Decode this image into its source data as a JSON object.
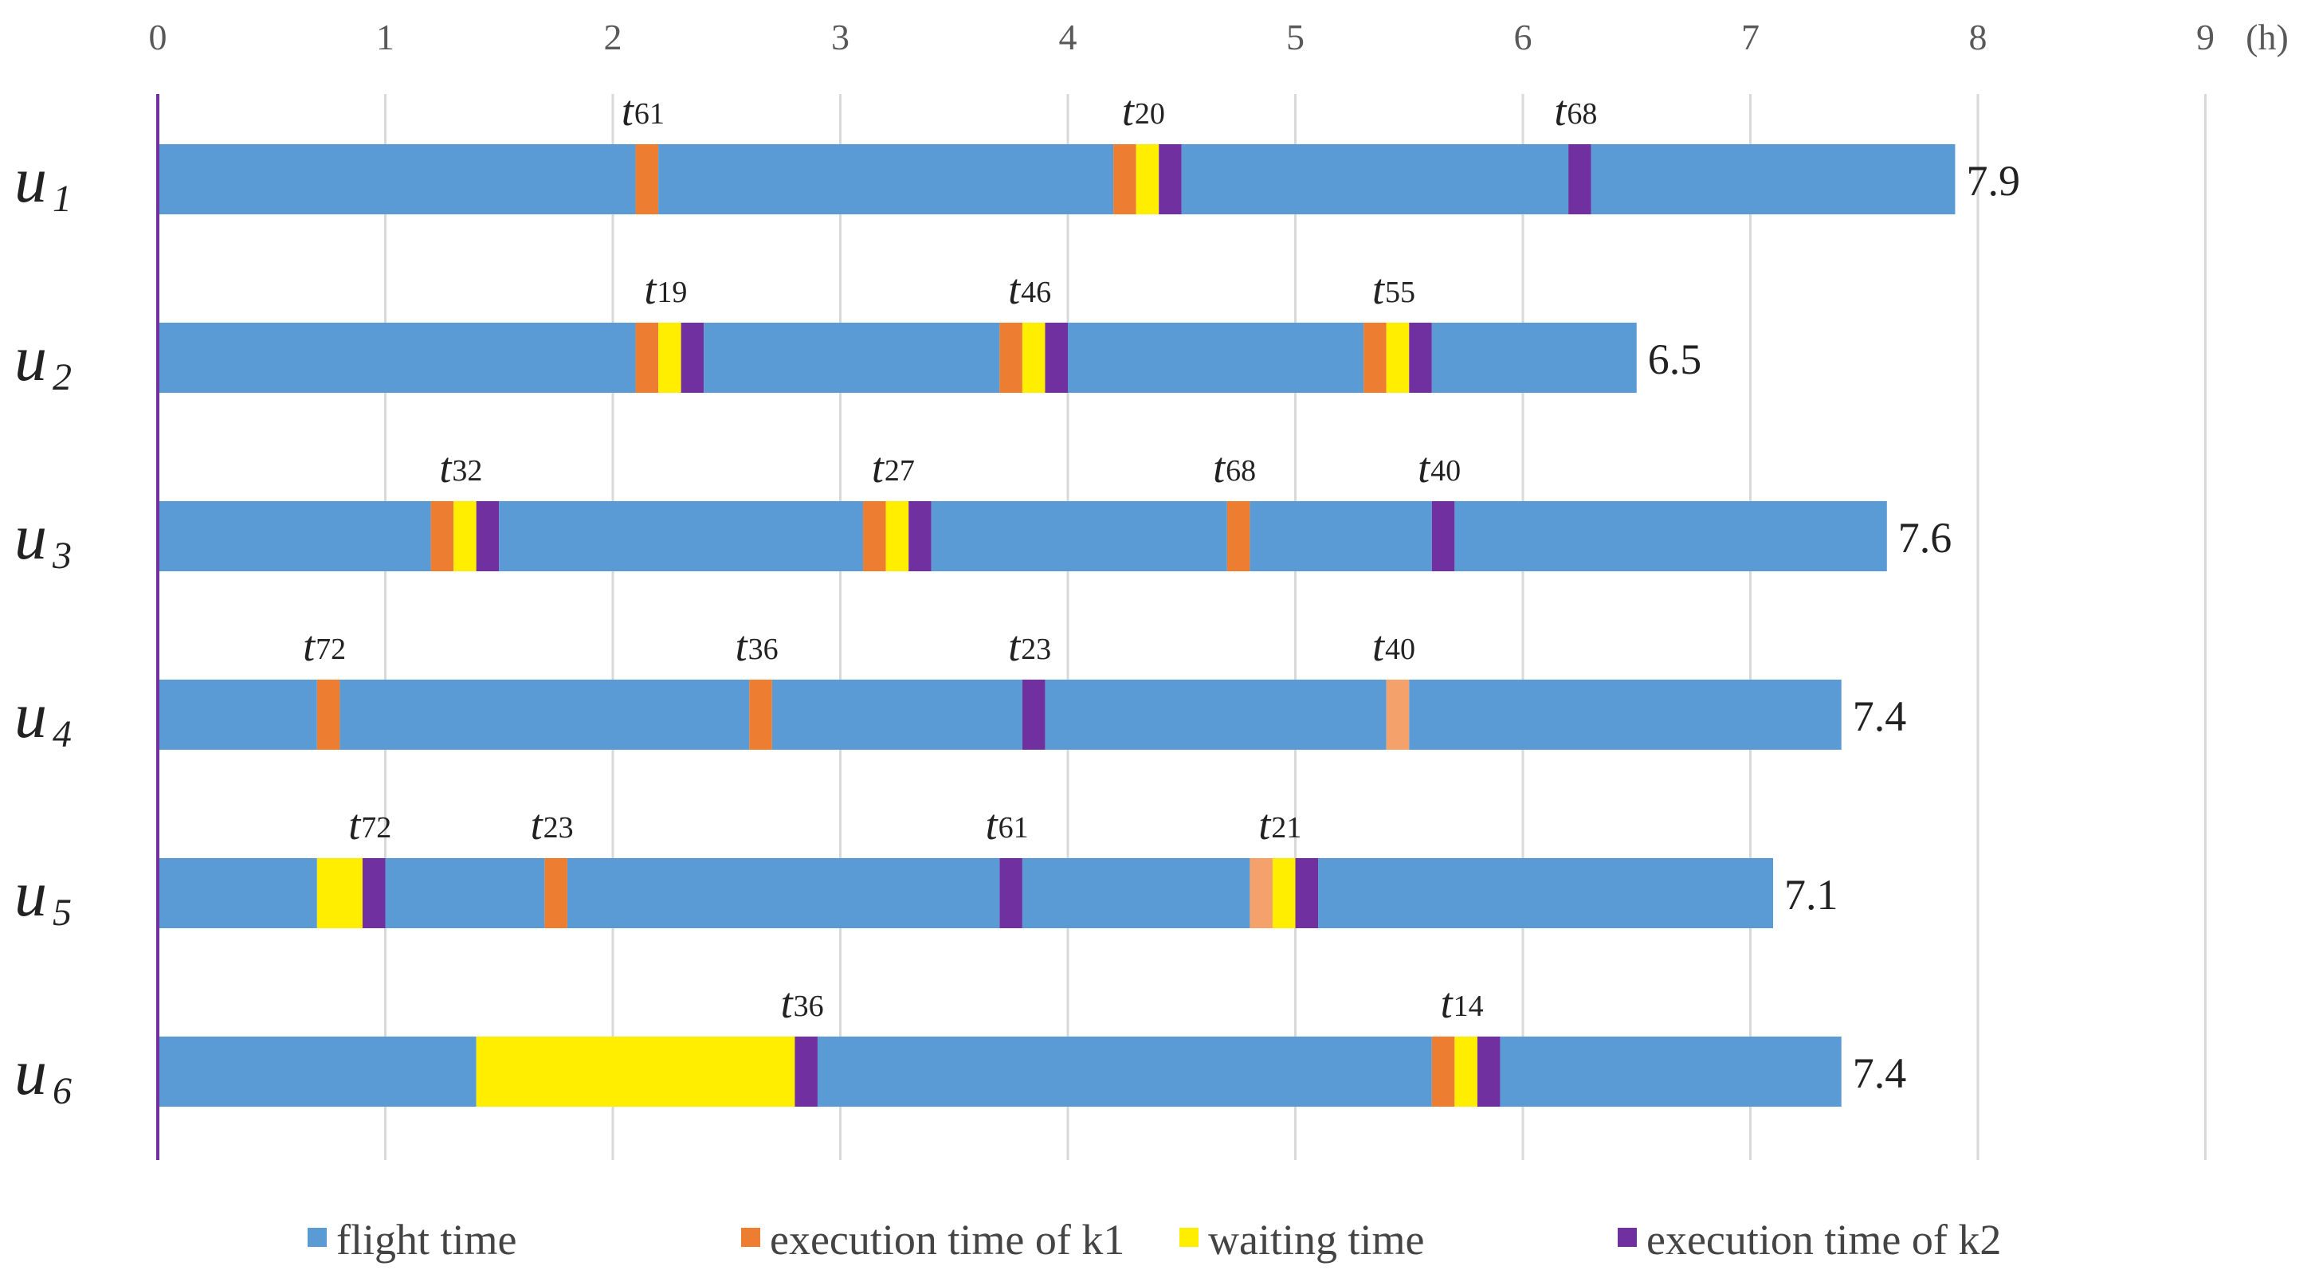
{
  "chart_data": {
    "type": "gantt",
    "unit_label": "(h)",
    "x_range": [
      0,
      9
    ],
    "x_ticks": [
      "0",
      "1",
      "2",
      "3",
      "4",
      "5",
      "6",
      "7",
      "8",
      "9"
    ],
    "colors": {
      "flight": "#5b9bd5",
      "exec1": "#ed7d31",
      "exec1_light": "#f4a16b",
      "wait": "#ffee00",
      "exec2": "#7030a0",
      "axis": "#7030a0",
      "grid": "#d9d9d9"
    },
    "legend": [
      {
        "key": "flight",
        "label": "flight time"
      },
      {
        "key": "exec1",
        "label": "execution time of k1"
      },
      {
        "key": "wait",
        "label": "waiting time"
      },
      {
        "key": "exec2",
        "label": "execution time of k2"
      }
    ],
    "rows": [
      {
        "label": "u",
        "sub": "1",
        "total": "7.9",
        "end": 7.9,
        "segments": [
          {
            "type": "flight",
            "start": 0,
            "end": 2.1
          },
          {
            "type": "exec1",
            "start": 2.1,
            "end": 2.2
          },
          {
            "type": "flight",
            "start": 2.2,
            "end": 4.2
          },
          {
            "type": "exec1",
            "start": 4.2,
            "end": 4.3
          },
          {
            "type": "wait",
            "start": 4.3,
            "end": 4.4
          },
          {
            "type": "exec2",
            "start": 4.4,
            "end": 4.5
          },
          {
            "type": "flight",
            "start": 4.5,
            "end": 6.2
          },
          {
            "type": "exec2",
            "start": 6.2,
            "end": 6.3
          },
          {
            "type": "flight",
            "start": 6.3,
            "end": 7.9
          }
        ],
        "tasks": [
          {
            "t": "t",
            "sub": "61",
            "at": 2.15
          },
          {
            "t": "t",
            "sub": "20",
            "at": 4.35
          },
          {
            "t": "t",
            "sub": "68",
            "at": 6.25
          }
        ]
      },
      {
        "label": "u",
        "sub": "2",
        "total": "6.5",
        "end": 6.5,
        "segments": [
          {
            "type": "flight",
            "start": 0,
            "end": 2.1
          },
          {
            "type": "exec1",
            "start": 2.1,
            "end": 2.2
          },
          {
            "type": "wait",
            "start": 2.2,
            "end": 2.3
          },
          {
            "type": "exec2",
            "start": 2.3,
            "end": 2.4
          },
          {
            "type": "flight",
            "start": 2.4,
            "end": 3.7
          },
          {
            "type": "exec1",
            "start": 3.7,
            "end": 3.8
          },
          {
            "type": "wait",
            "start": 3.8,
            "end": 3.9
          },
          {
            "type": "exec2",
            "start": 3.9,
            "end": 4.0
          },
          {
            "type": "flight",
            "start": 4.0,
            "end": 5.3
          },
          {
            "type": "exec1",
            "start": 5.3,
            "end": 5.4
          },
          {
            "type": "wait",
            "start": 5.4,
            "end": 5.5
          },
          {
            "type": "exec2",
            "start": 5.5,
            "end": 5.6
          },
          {
            "type": "flight",
            "start": 5.6,
            "end": 6.5
          }
        ],
        "tasks": [
          {
            "t": "t",
            "sub": "19",
            "at": 2.25
          },
          {
            "t": "t",
            "sub": "46",
            "at": 3.85
          },
          {
            "t": "t",
            "sub": "55",
            "at": 5.45
          }
        ]
      },
      {
        "label": "u",
        "sub": "3",
        "total": "7.6",
        "end": 7.6,
        "segments": [
          {
            "type": "flight",
            "start": 0,
            "end": 1.2
          },
          {
            "type": "exec1",
            "start": 1.2,
            "end": 1.3
          },
          {
            "type": "wait",
            "start": 1.3,
            "end": 1.4
          },
          {
            "type": "exec2",
            "start": 1.4,
            "end": 1.5
          },
          {
            "type": "flight",
            "start": 1.5,
            "end": 3.1
          },
          {
            "type": "exec1",
            "start": 3.1,
            "end": 3.2
          },
          {
            "type": "wait",
            "start": 3.2,
            "end": 3.3
          },
          {
            "type": "exec2",
            "start": 3.3,
            "end": 3.4
          },
          {
            "type": "flight",
            "start": 3.4,
            "end": 4.7
          },
          {
            "type": "exec1",
            "start": 4.7,
            "end": 4.8
          },
          {
            "type": "flight",
            "start": 4.8,
            "end": 5.6
          },
          {
            "type": "exec2",
            "start": 5.6,
            "end": 5.7
          },
          {
            "type": "flight",
            "start": 5.7,
            "end": 7.6
          }
        ],
        "tasks": [
          {
            "t": "t",
            "sub": "32",
            "at": 1.35
          },
          {
            "t": "t",
            "sub": "27",
            "at": 3.25
          },
          {
            "t": "t",
            "sub": "68",
            "at": 4.75
          },
          {
            "t": "t",
            "sub": "40",
            "at": 5.65
          }
        ]
      },
      {
        "label": "u",
        "sub": "4",
        "total": "7.4",
        "end": 7.4,
        "segments": [
          {
            "type": "flight",
            "start": 0,
            "end": 0.7
          },
          {
            "type": "exec1",
            "start": 0.7,
            "end": 0.8
          },
          {
            "type": "flight",
            "start": 0.8,
            "end": 2.6
          },
          {
            "type": "exec1",
            "start": 2.6,
            "end": 2.7
          },
          {
            "type": "flight",
            "start": 2.7,
            "end": 3.8
          },
          {
            "type": "exec2",
            "start": 3.8,
            "end": 3.9
          },
          {
            "type": "flight",
            "start": 3.9,
            "end": 5.4
          },
          {
            "type": "exec1_light",
            "start": 5.4,
            "end": 5.5
          },
          {
            "type": "flight",
            "start": 5.5,
            "end": 7.4
          }
        ],
        "tasks": [
          {
            "t": "t",
            "sub": "72",
            "at": 0.75
          },
          {
            "t": "t",
            "sub": "36",
            "at": 2.65
          },
          {
            "t": "t",
            "sub": "23",
            "at": 3.85
          },
          {
            "t": "t",
            "sub": "40",
            "at": 5.45
          }
        ]
      },
      {
        "label": "u",
        "sub": "5",
        "total": "7.1",
        "end": 7.1,
        "segments": [
          {
            "type": "flight",
            "start": 0,
            "end": 0.7
          },
          {
            "type": "wait",
            "start": 0.7,
            "end": 0.9
          },
          {
            "type": "exec2",
            "start": 0.9,
            "end": 1.0
          },
          {
            "type": "flight",
            "start": 1.0,
            "end": 1.7
          },
          {
            "type": "exec1",
            "start": 1.7,
            "end": 1.8
          },
          {
            "type": "flight",
            "start": 1.8,
            "end": 3.7
          },
          {
            "type": "exec2",
            "start": 3.7,
            "end": 3.8
          },
          {
            "type": "flight",
            "start": 3.8,
            "end": 4.8
          },
          {
            "type": "exec1_light",
            "start": 4.8,
            "end": 4.9
          },
          {
            "type": "wait",
            "start": 4.9,
            "end": 5.0
          },
          {
            "type": "exec2",
            "start": 5.0,
            "end": 5.1
          },
          {
            "type": "flight",
            "start": 5.1,
            "end": 7.1
          }
        ],
        "tasks": [
          {
            "t": "t",
            "sub": "72",
            "at": 0.95
          },
          {
            "t": "t",
            "sub": "23",
            "at": 1.75
          },
          {
            "t": "t",
            "sub": "61",
            "at": 3.75
          },
          {
            "t": "t",
            "sub": "21",
            "at": 4.95
          }
        ]
      },
      {
        "label": "u",
        "sub": "6",
        "total": "7.4",
        "end": 7.4,
        "segments": [
          {
            "type": "flight",
            "start": 0,
            "end": 1.4
          },
          {
            "type": "wait",
            "start": 1.4,
            "end": 2.8
          },
          {
            "type": "exec2",
            "start": 2.8,
            "end": 2.9
          },
          {
            "type": "flight",
            "start": 2.9,
            "end": 5.6
          },
          {
            "type": "exec1",
            "start": 5.6,
            "end": 5.7
          },
          {
            "type": "wait",
            "start": 5.7,
            "end": 5.8
          },
          {
            "type": "exec2",
            "start": 5.8,
            "end": 5.9
          },
          {
            "type": "flight",
            "start": 5.9,
            "end": 7.4
          }
        ],
        "tasks": [
          {
            "t": "t",
            "sub": "36",
            "at": 2.85
          },
          {
            "t": "t",
            "sub": "14",
            "at": 5.75
          }
        ]
      }
    ]
  }
}
